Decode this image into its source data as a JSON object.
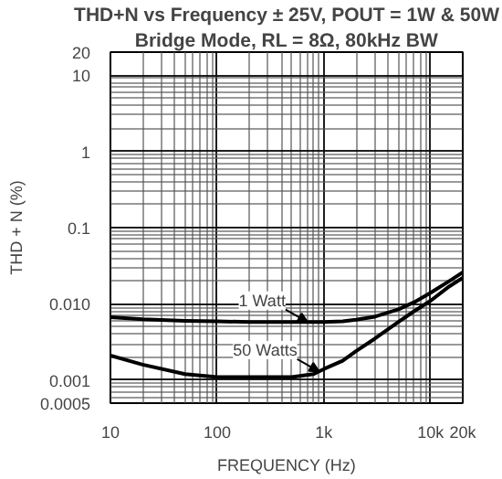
{
  "chart_data": {
    "type": "line",
    "title": "THD+N vs Frequency ± 25V, POUT = 1W & 50W",
    "subtitle": "Bridge Mode, RL = 8Ω, 80kHz BW",
    "xlabel": "FREQUENCY (Hz)",
    "ylabel": "THD + N (%)",
    "log": "xy",
    "grid": true,
    "marker": "none",
    "line_style": "solid",
    "xlim": [
      10,
      20000
    ],
    "ylim": [
      0.0005,
      20
    ],
    "xticks": [
      10,
      100,
      {
        "value": 1000,
        "label": "1k"
      },
      {
        "value": 10000,
        "label": "10k"
      },
      {
        "value": 20000,
        "label": "20k"
      }
    ],
    "yticks": [
      0.0005,
      0.001,
      {
        "value": 0.01,
        "label": "0.010"
      },
      0.1,
      1,
      10,
      20
    ],
    "x": [
      10,
      20,
      50,
      100,
      200,
      500,
      800,
      1000,
      1500,
      2000,
      3000,
      5000,
      7000,
      10000,
      15000,
      20000
    ],
    "series": [
      {
        "color": "#000000",
        "values": [
          0.0067,
          0.0063,
          0.006,
          0.0059,
          0.0058,
          0.0058,
          0.0058,
          0.0058,
          0.0059,
          0.0062,
          0.0068,
          0.0085,
          0.0105,
          0.014,
          0.02,
          0.026
        ]
      },
      {
        "color": "#000000",
        "values": [
          0.0021,
          0.0016,
          0.0012,
          0.0011,
          0.0011,
          0.0011,
          0.0012,
          0.0014,
          0.0018,
          0.0024,
          0.0035,
          0.0058,
          0.008,
          0.011,
          0.017,
          0.022
        ]
      }
    ],
    "annotations": [
      {
        "text": "1 Watt",
        "x": 700,
        "y": 0.0058
      },
      {
        "text": "50 Watts",
        "x": 900,
        "y": 0.0013
      }
    ]
  }
}
